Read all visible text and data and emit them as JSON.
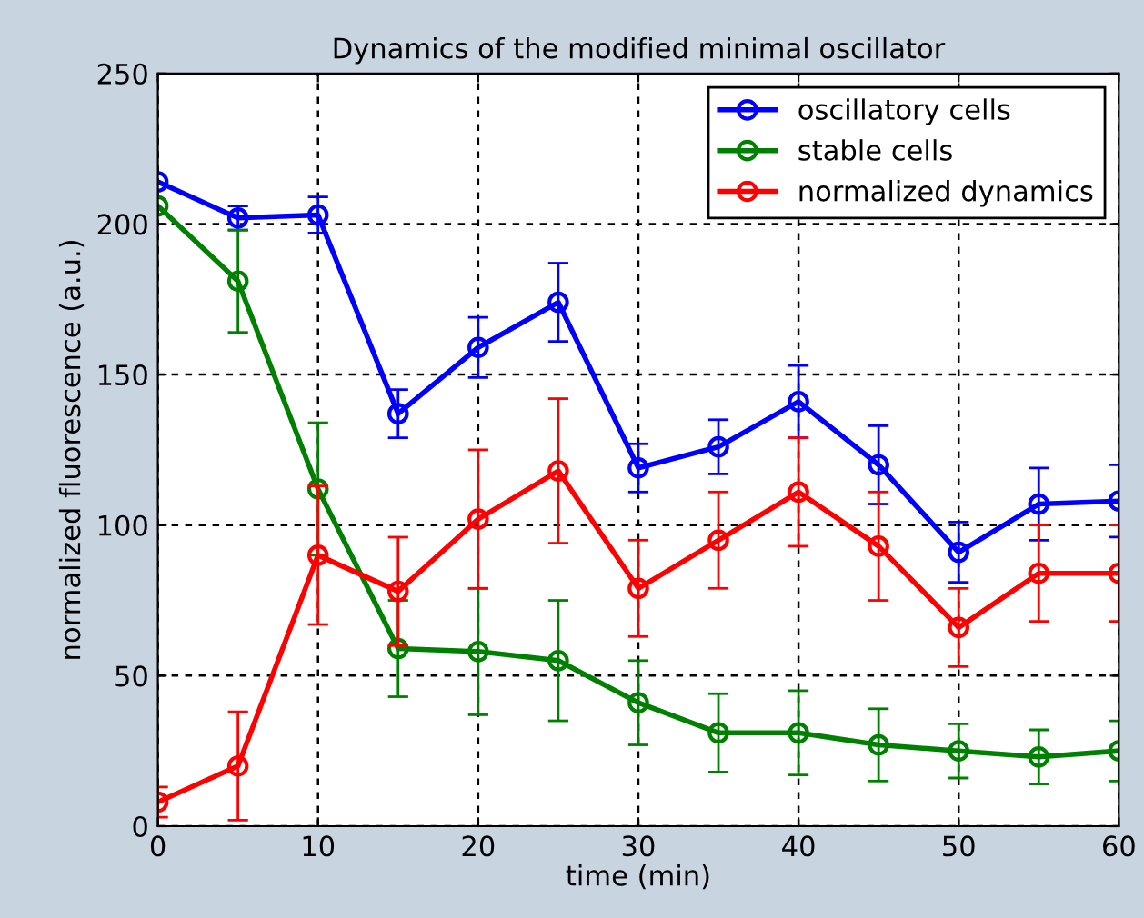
{
  "chart_data": {
    "type": "line",
    "title": "Dynamics of the modified minimal oscillator",
    "xlabel": "time (min)",
    "ylabel": "normalized fluorescence (a.u.)",
    "x": [
      0,
      5,
      10,
      15,
      20,
      25,
      30,
      35,
      40,
      45,
      50,
      55,
      60
    ],
    "series": [
      {
        "name": "oscillatory cells",
        "color": "#0000ff",
        "values": [
          214,
          202,
          203,
          137,
          159,
          174,
          119,
          126,
          141,
          120,
          91,
          107,
          108
        ],
        "errors": [
          null,
          4,
          6,
          8,
          10,
          13,
          8,
          9,
          12,
          13,
          10,
          12,
          12
        ]
      },
      {
        "name": "stable cells",
        "color": "#008000",
        "values": [
          206,
          181,
          112,
          59,
          58,
          55,
          41,
          31,
          31,
          27,
          25,
          23,
          25
        ],
        "errors": [
          null,
          17,
          22,
          16,
          21,
          20,
          14,
          13,
          14,
          12,
          9,
          9,
          10
        ]
      },
      {
        "name": "normalized dynamics",
        "color": "#ff0000",
        "values": [
          8,
          20,
          90,
          78,
          102,
          118,
          79,
          95,
          111,
          93,
          66,
          84,
          84
        ],
        "errors": [
          5,
          18,
          23,
          18,
          23,
          24,
          16,
          16,
          18,
          18,
          13,
          16,
          16
        ]
      }
    ],
    "xlim": [
      0,
      60
    ],
    "ylim": [
      0,
      250
    ],
    "xticks": [
      0,
      10,
      20,
      30,
      40,
      50,
      60
    ],
    "yticks": [
      0,
      50,
      100,
      150,
      200,
      250
    ],
    "grid": true,
    "legend": "top right",
    "marker": "circle",
    "line_style": "solid"
  }
}
